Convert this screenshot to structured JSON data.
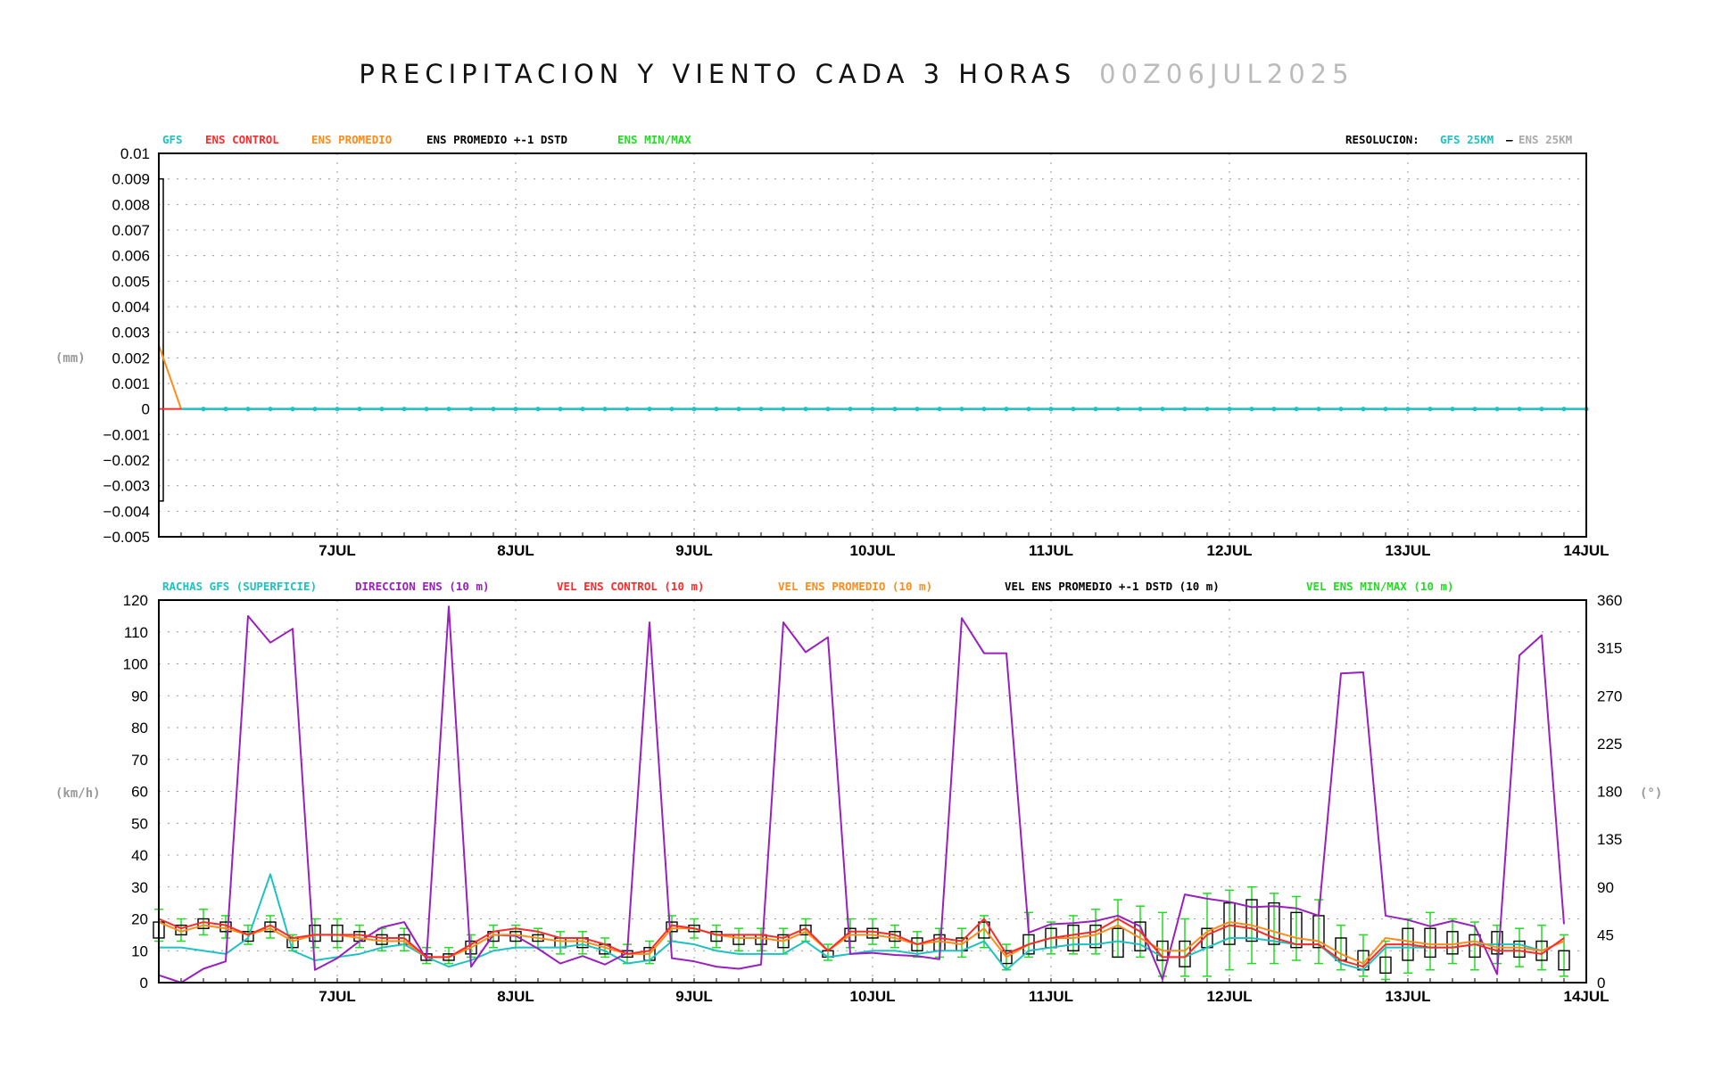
{
  "title": {
    "main": "PRECIPITACION Y VIENTO CADA 3 HORAS",
    "date": "00Z06JUL2025"
  },
  "colors": {
    "gfs": "#1fc2c2",
    "ens_control": "#ff2a2a",
    "ens_promedio": "#ff8c1a",
    "dstd": "#000000",
    "minmax": "#22dd22",
    "direccion": "#9a1fbf",
    "rachas": "#1fc2c2"
  },
  "chart_data": [
    {
      "type": "line",
      "legend": {
        "gfs": "GFS",
        "ens_control": "ENS CONTROL",
        "ens_promedio": "ENS PROMEDIO",
        "dstd": "ENS PROMEDIO +-1 DSTD",
        "minmax": "ENS MIN/MAX"
      },
      "resolution": {
        "label": "RESOLUCION:",
        "gfs": "GFS 25KM",
        "sep": "–",
        "ens": "ENS 25KM"
      },
      "ylabel": "(mm)",
      "ylim": [
        -0.005,
        0.01
      ],
      "yticks": [
        "0.01",
        "0.009",
        "0.008",
        "0.007",
        "0.006",
        "0.005",
        "0.004",
        "0.003",
        "0.002",
        "0.001",
        "0",
        "−0.001",
        "−0.002",
        "−0.003",
        "−0.004",
        "−0.005"
      ],
      "xticks": [
        "7JUL",
        "8JUL",
        "9JUL",
        "10JUL",
        "11JUL",
        "12JUL",
        "13JUL",
        "14JUL"
      ],
      "xlim_days": [
        6.0,
        14.0
      ],
      "ens_promedio": [
        [
          6.0,
          0.0025
        ],
        [
          6.125,
          0
        ]
      ],
      "dstd_initial": {
        "hi": 0.009,
        "lo": -0.0036
      },
      "gfs_value": 0
    },
    {
      "type": "line",
      "legend": {
        "rachas": "RACHAS GFS (SUPERFICIE)",
        "direccion": "DIRECCION ENS (10 m)",
        "control": "VEL ENS CONTROL (10 m)",
        "promedio": "VEL ENS PROMEDIO (10 m)",
        "dstd": "VEL ENS PROMEDIO +-1 DSTD (10 m)",
        "minmax": "VEL ENS MIN/MAX (10 m)"
      },
      "ylabel_left": "(km/h)",
      "ylabel_right": "(°)",
      "ylim_left": [
        0,
        120
      ],
      "ylim_right": [
        0,
        360
      ],
      "yticks_left": [
        "0",
        "10",
        "20",
        "30",
        "40",
        "50",
        "60",
        "70",
        "80",
        "90",
        "100",
        "110",
        "120"
      ],
      "yticks_right": [
        "0",
        "45",
        "90",
        "135",
        "180",
        "225",
        "270",
        "315",
        "360"
      ],
      "xticks": [
        "7JUL",
        "8JUL",
        "9JUL",
        "10JUL",
        "11JUL",
        "12JUL",
        "13JUL",
        "14JUL"
      ],
      "xlim_days": [
        6.0,
        14.0
      ],
      "step_days": 0.125,
      "promedio": [
        19,
        16,
        18,
        17,
        15,
        17,
        13,
        15,
        15,
        14,
        13,
        13,
        8,
        8,
        11,
        15,
        15,
        14,
        13,
        13,
        11,
        9,
        9,
        17,
        17,
        15,
        14,
        14,
        13,
        16,
        10,
        15,
        15,
        14,
        12,
        13,
        12,
        17,
        8,
        12,
        14,
        14,
        15,
        18,
        14,
        10,
        10,
        16,
        19,
        18,
        16,
        14,
        13,
        9,
        6,
        14,
        13,
        12,
        12,
        13,
        11,
        11,
        10,
        13
      ],
      "control": [
        20,
        17,
        19,
        18,
        15,
        18,
        14,
        15,
        15,
        15,
        14,
        14,
        8,
        8,
        12,
        16,
        17,
        16,
        14,
        14,
        12,
        9,
        10,
        18,
        17,
        15,
        15,
        15,
        14,
        17,
        10,
        16,
        16,
        15,
        12,
        14,
        13,
        20,
        9,
        12,
        14,
        15,
        16,
        20,
        16,
        8,
        8,
        15,
        18,
        17,
        14,
        12,
        12,
        7,
        5,
        12,
        12,
        11,
        11,
        12,
        10,
        10,
        9,
        14
      ],
      "rachas": [
        11,
        11,
        10,
        9,
        14,
        34,
        10,
        7,
        8,
        9,
        11,
        12,
        8,
        5,
        7,
        10,
        11,
        11,
        11,
        12,
        10,
        6,
        7,
        13,
        12,
        10,
        9,
        9,
        9,
        13,
        8,
        9,
        10,
        10,
        9,
        10,
        10,
        13,
        4,
        10,
        11,
        12,
        12,
        13,
        12,
        8,
        8,
        11,
        14,
        14,
        13,
        12,
        12,
        6,
        4,
        11,
        11,
        11,
        11,
        12,
        12,
        12,
        10,
        13
      ],
      "direccion": [
        7,
        0,
        13,
        20,
        345,
        320,
        333,
        12,
        23,
        39,
        52,
        57,
        22,
        354,
        15,
        45,
        44,
        32,
        18,
        25,
        17,
        28,
        339,
        23,
        20,
        15,
        13,
        17,
        339,
        311,
        325,
        27,
        28,
        26,
        25,
        22,
        343,
        310,
        310,
        47,
        55,
        56,
        58,
        63,
        53,
        3,
        83,
        79,
        76,
        71,
        72,
        70,
        63,
        291,
        292,
        63,
        59,
        53,
        58,
        53,
        8,
        308,
        327,
        55
      ],
      "dstd_box": [
        [
          14,
          19
        ],
        [
          15,
          18
        ],
        [
          17,
          20
        ],
        [
          16,
          19
        ],
        [
          13,
          16
        ],
        [
          16,
          19
        ],
        [
          11,
          14
        ],
        [
          13,
          18
        ],
        [
          13,
          18
        ],
        [
          13,
          16
        ],
        [
          12,
          15
        ],
        [
          12,
          15
        ],
        [
          7,
          9
        ],
        [
          7,
          9
        ],
        [
          9,
          13
        ],
        [
          13,
          16
        ],
        [
          13,
          16
        ],
        [
          13,
          15
        ],
        [
          11,
          14
        ],
        [
          11,
          14
        ],
        [
          9,
          12
        ],
        [
          8,
          10
        ],
        [
          7,
          11
        ],
        [
          16,
          19
        ],
        [
          16,
          18
        ],
        [
          13,
          16
        ],
        [
          12,
          15
        ],
        [
          12,
          15
        ],
        [
          11,
          15
        ],
        [
          15,
          18
        ],
        [
          8,
          10
        ],
        [
          13,
          17
        ],
        [
          14,
          17
        ],
        [
          13,
          16
        ],
        [
          10,
          14
        ],
        [
          10,
          15
        ],
        [
          10,
          14
        ],
        [
          14,
          19
        ],
        [
          6,
          10
        ],
        [
          9,
          15
        ],
        [
          11,
          17
        ],
        [
          10,
          18
        ],
        [
          11,
          18
        ],
        [
          8,
          17
        ],
        [
          10,
          19
        ],
        [
          7,
          13
        ],
        [
          5,
          13
        ],
        [
          11,
          17
        ],
        [
          12,
          25
        ],
        [
          13,
          26
        ],
        [
          12,
          25
        ],
        [
          11,
          22
        ],
        [
          11,
          21
        ],
        [
          7,
          14
        ],
        [
          4,
          10
        ],
        [
          3,
          8
        ],
        [
          7,
          17
        ],
        [
          8,
          17
        ],
        [
          9,
          16
        ],
        [
          8,
          15
        ],
        [
          9,
          16
        ],
        [
          8,
          13
        ],
        [
          7,
          13
        ],
        [
          4,
          10
        ]
      ],
      "minmax_whisker": [
        [
          13,
          23
        ],
        [
          13,
          20
        ],
        [
          15,
          23
        ],
        [
          14,
          21
        ],
        [
          12,
          18
        ],
        [
          14,
          21
        ],
        [
          10,
          15
        ],
        [
          11,
          20
        ],
        [
          11,
          20
        ],
        [
          11,
          18
        ],
        [
          10,
          17
        ],
        [
          10,
          17
        ],
        [
          6,
          11
        ],
        [
          6,
          11
        ],
        [
          8,
          15
        ],
        [
          11,
          18
        ],
        [
          11,
          18
        ],
        [
          11,
          17
        ],
        [
          9,
          16
        ],
        [
          9,
          16
        ],
        [
          8,
          14
        ],
        [
          6,
          12
        ],
        [
          6,
          13
        ],
        [
          13,
          21
        ],
        [
          14,
          20
        ],
        [
          11,
          18
        ],
        [
          10,
          17
        ],
        [
          10,
          17
        ],
        [
          9,
          17
        ],
        [
          13,
          20
        ],
        [
          7,
          12
        ],
        [
          11,
          20
        ],
        [
          12,
          20
        ],
        [
          11,
          18
        ],
        [
          8,
          16
        ],
        [
          8,
          17
        ],
        [
          8,
          17
        ],
        [
          11,
          21
        ],
        [
          4,
          12
        ],
        [
          8,
          22
        ],
        [
          9,
          19
        ],
        [
          9,
          21
        ],
        [
          9,
          23
        ],
        [
          8,
          26
        ],
        [
          8,
          24
        ],
        [
          2,
          22
        ],
        [
          2,
          20
        ],
        [
          2,
          28
        ],
        [
          4,
          29
        ],
        [
          6,
          30
        ],
        [
          6,
          28
        ],
        [
          7,
          27
        ],
        [
          6,
          26
        ],
        [
          4,
          18
        ],
        [
          2,
          15
        ],
        [
          1,
          13
        ],
        [
          3,
          20
        ],
        [
          4,
          22
        ],
        [
          6,
          20
        ],
        [
          4,
          19
        ],
        [
          6,
          18
        ],
        [
          5,
          17
        ],
        [
          4,
          18
        ],
        [
          2,
          15
        ]
      ]
    }
  ]
}
